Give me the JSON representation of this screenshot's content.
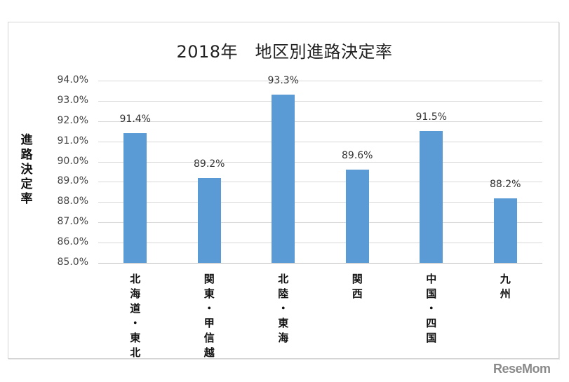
{
  "chart_data": {
    "type": "bar",
    "title": "2018年　地区別進路決定率",
    "xlabel": "",
    "ylabel": "進路決定率",
    "categories": [
      "北海道・東北",
      "関東・甲信越",
      "北陸・東海",
      "関西",
      "中国・四国",
      "九州"
    ],
    "values": [
      91.4,
      89.2,
      93.3,
      89.6,
      91.5,
      88.2
    ],
    "value_labels": [
      "91.4%",
      "89.2%",
      "93.3%",
      "89.6%",
      "91.5%",
      "88.2%"
    ],
    "ylim": [
      85.0,
      94.0
    ],
    "yticks": [
      "94.0%",
      "93.0%",
      "92.0%",
      "91.0%",
      "90.0%",
      "89.0%",
      "88.0%",
      "87.0%",
      "86.0%",
      "85.0%"
    ],
    "grid": true,
    "legend": null,
    "bar_color": "#5b9bd5"
  },
  "watermark": "ReseMom"
}
